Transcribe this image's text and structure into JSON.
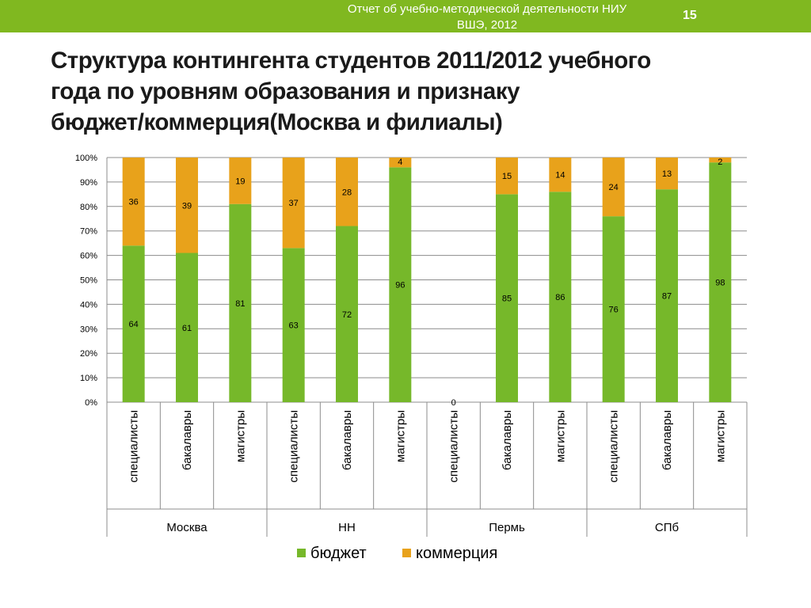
{
  "header": {
    "text": "Отчет об учебно-методической деятельности НИУ\nВШЭ, 2012",
    "page_number": "15"
  },
  "slide": {
    "title": "Структура контингента студентов 2011/2012 учебного\nгода по уровням образования и признаку\nбюджет/коммерция(Москва и филиалы)"
  },
  "chart_data": {
    "type": "bar",
    "stacked": true,
    "percent": true,
    "ylim": [
      0,
      100
    ],
    "yticks": [
      "0%",
      "10%",
      "20%",
      "30%",
      "40%",
      "50%",
      "60%",
      "70%",
      "80%",
      "90%",
      "100%"
    ],
    "grid": true,
    "legend_position": "bottom",
    "categories": [
      "специалисты",
      "бакалавры",
      "магистры",
      "специалисты",
      "бакалавры",
      "магистры",
      "специалисты",
      "бакалавры",
      "магистры",
      "специалисты",
      "бакалавры",
      "магистры"
    ],
    "groups": [
      {
        "label": "Москва",
        "count": 3
      },
      {
        "label": "НН",
        "count": 3
      },
      {
        "label": "Пермь",
        "count": 3
      },
      {
        "label": "СПб",
        "count": 3
      }
    ],
    "series": [
      {
        "name": "бюджет",
        "color": "#76b82a",
        "values": [
          64,
          61,
          81,
          63,
          72,
          96,
          0,
          85,
          86,
          76,
          87,
          98
        ]
      },
      {
        "name": "коммерция",
        "color": "#e8a21b",
        "values": [
          36,
          39,
          19,
          37,
          28,
          4,
          null,
          15,
          14,
          24,
          13,
          2
        ]
      }
    ]
  }
}
